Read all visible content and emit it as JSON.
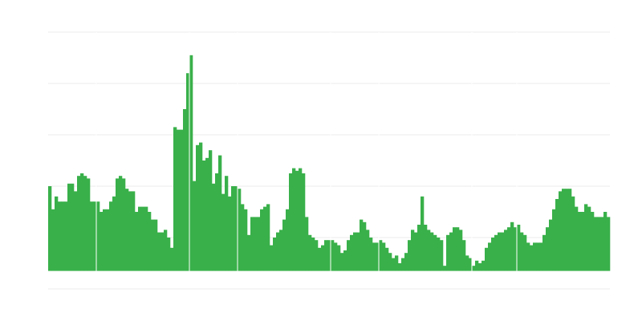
{
  "chart_data": {
    "type": "bar",
    "title": "",
    "xlabel": "",
    "ylabel": "",
    "ylim": [
      0,
      100
    ],
    "ygrid_step": 20,
    "grid": true,
    "legend": "none",
    "baseline": 7,
    "bar_color": "#39b04a",
    "grid_color": "#ebebeb",
    "separators_after_bar": [
      14,
      43,
      58,
      87,
      102,
      131,
      145
    ],
    "values": [
      40,
      31,
      36,
      34,
      34,
      34,
      41,
      41,
      38,
      44,
      45,
      44,
      43,
      34,
      34,
      34,
      30,
      31,
      31,
      34,
      36,
      43,
      44,
      43,
      39,
      38,
      38,
      30,
      32,
      32,
      32,
      30,
      27,
      27,
      22,
      22,
      23,
      20,
      16,
      63,
      62,
      62,
      70,
      84,
      91,
      42,
      56,
      57,
      50,
      51,
      54,
      41,
      45,
      52,
      37,
      44,
      36,
      40,
      40,
      39,
      33,
      31,
      21,
      28,
      28,
      28,
      31,
      32,
      33,
      17,
      20,
      22,
      23,
      27,
      31,
      45,
      47,
      46,
      47,
      45,
      28,
      21,
      20,
      19,
      16,
      17,
      19,
      19,
      19,
      18,
      17,
      14,
      15,
      19,
      21,
      22,
      22,
      27,
      26,
      23,
      20,
      18,
      18,
      19,
      18,
      16,
      14,
      12,
      13,
      10,
      12,
      14,
      19,
      23,
      22,
      25,
      36,
      25,
      23,
      22,
      21,
      20,
      19,
      9,
      21,
      22,
      24,
      24,
      23,
      19,
      13,
      12,
      9,
      11,
      10,
      11,
      16,
      18,
      20,
      21,
      22,
      22,
      23,
      24,
      26,
      24,
      25,
      22,
      21,
      18,
      17,
      18,
      18,
      18,
      21,
      24,
      27,
      31,
      35,
      38,
      39,
      39,
      39,
      36,
      32,
      30,
      30,
      33,
      32,
      30,
      28,
      28,
      28,
      30,
      28
    ]
  }
}
